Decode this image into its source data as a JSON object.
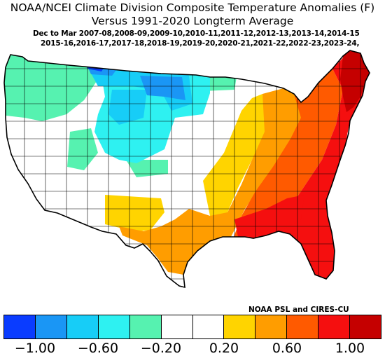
{
  "title": {
    "line1": "NOAA/NCEI Climate Division Composite Temperature Anomalies (F)",
    "line2": "Versus 1991-2020 Longterm Average"
  },
  "years": {
    "line1": "Dec to Mar  2007-08,2008-09,2009-10,2010-11,2011-12,2012-13,2013-14,2014-15",
    "line2": "2015-16,2016-17,2017-18,2018-19,2019-20,2020-21,2021-22,2022-23,2023-24,"
  },
  "credit": "NOAA PSL and CIRES-CU",
  "colorbar": {
    "colors": [
      "#0a3cff",
      "#1a96f5",
      "#17cdf7",
      "#2ef1f1",
      "#56f2b0",
      "#ffffff",
      "#ffffff",
      "#ffd400",
      "#ff9d00",
      "#ff5a00",
      "#f50f0f",
      "#c50000"
    ],
    "ticks": [
      "-1.00",
      "-0.60",
      "-0.20",
      "0.20",
      "0.60",
      "1.00"
    ]
  }
}
